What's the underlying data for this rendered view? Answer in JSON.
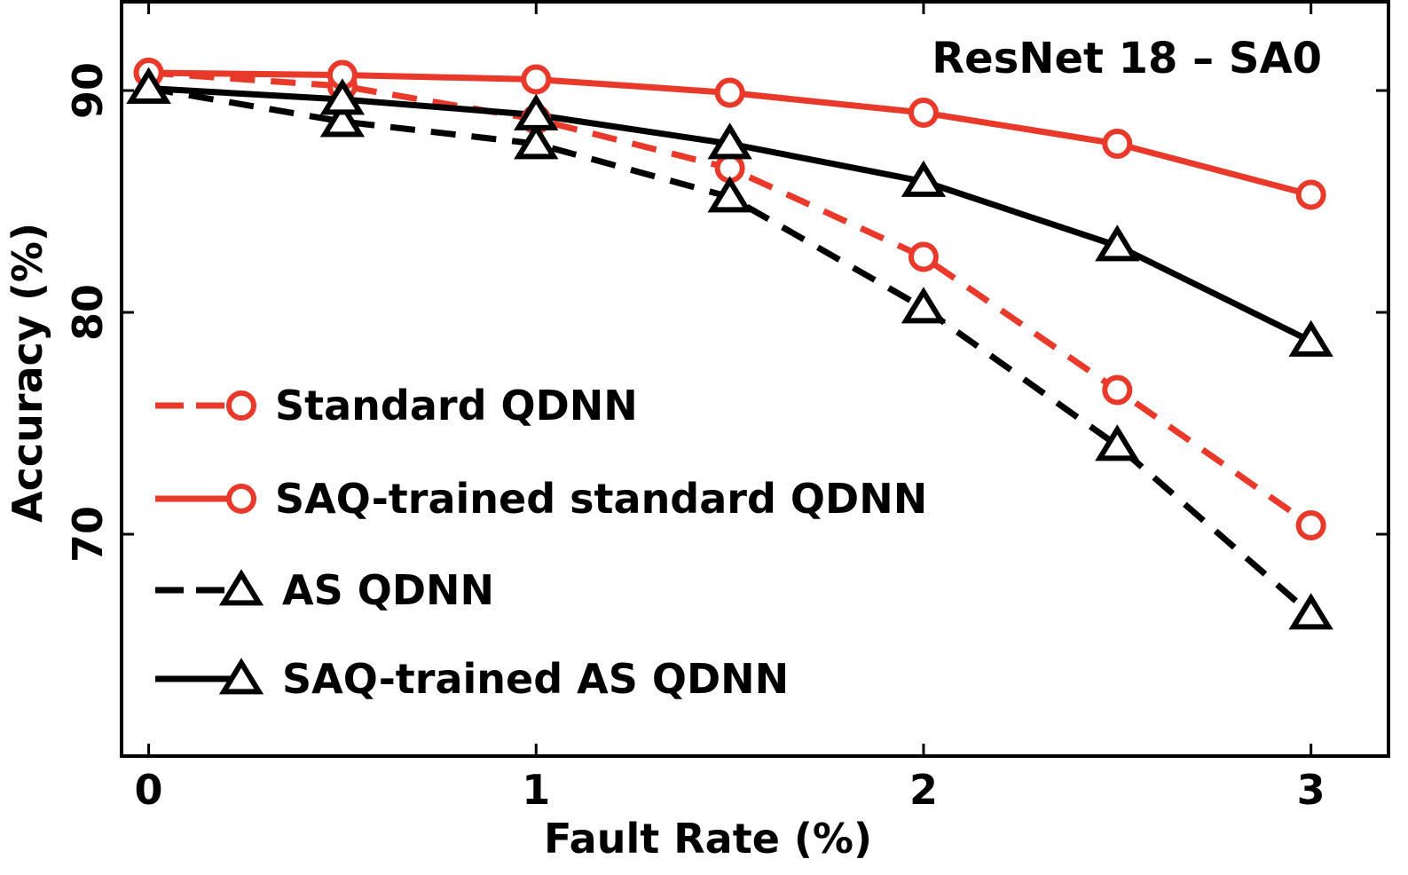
{
  "chart_data": {
    "type": "line",
    "title": "ResNet 18 – SA0",
    "xlabel": "Fault Rate (%)",
    "ylabel": "Accuracy (%)",
    "xlim": [
      -0.07,
      3.2
    ],
    "ylim": [
      60,
      94
    ],
    "xticks": [
      0,
      1,
      2,
      3
    ],
    "xtick_labels": [
      "0",
      "1",
      "2",
      "3"
    ],
    "yticks": [
      70,
      80,
      90
    ],
    "ytick_labels": [
      "70",
      "80",
      "90"
    ],
    "grid": false,
    "legend_position": "left-center",
    "x": [
      0,
      0.5,
      1,
      1.5,
      2,
      2.5,
      3
    ],
    "series": [
      {
        "name": "Standard QDNN",
        "values": [
          90.8,
          90.2,
          88.7,
          86.5,
          82.5,
          76.5,
          70.4
        ],
        "color": "#e8392a",
        "line_style": "dashed",
        "marker": "circle"
      },
      {
        "name": "SAQ-trained standard QDNN",
        "values": [
          90.8,
          90.7,
          90.5,
          89.9,
          89.0,
          87.6,
          85.3
        ],
        "color": "#e8392a",
        "line_style": "solid",
        "marker": "circle"
      },
      {
        "name": "AS QDNN",
        "values": [
          90.1,
          88.6,
          87.6,
          85.2,
          80.2,
          74.0,
          66.4
        ],
        "color": "#000000",
        "line_style": "dashed",
        "marker": "triangle"
      },
      {
        "name": "SAQ-trained AS QDNN",
        "values": [
          90.1,
          89.6,
          88.9,
          87.6,
          85.9,
          83.0,
          78.7
        ],
        "color": "#000000",
        "line_style": "solid",
        "marker": "triangle"
      }
    ]
  }
}
